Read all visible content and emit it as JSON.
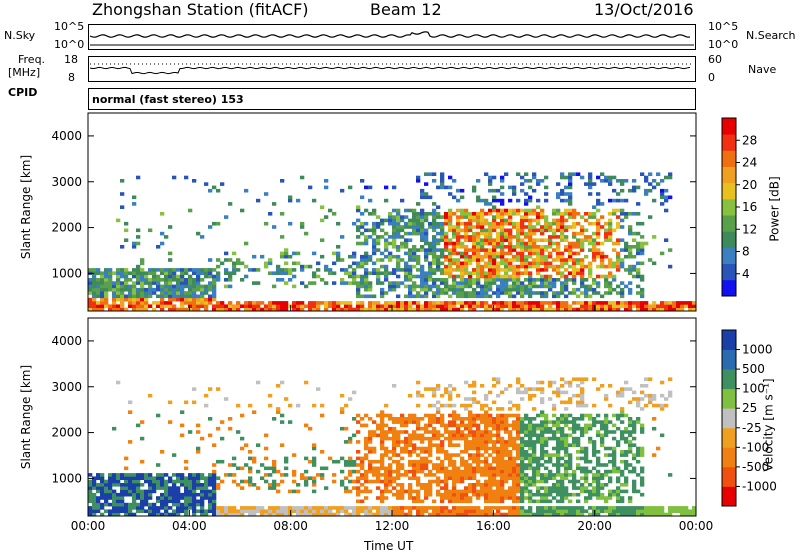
{
  "header": {
    "station": "Zhongshan Station (fitACF)",
    "beam": "Beam 12",
    "date": "13/Oct/2016"
  },
  "top_panels": {
    "nsky_label": "N.Sky",
    "nsky_ticks": [
      "10^5",
      "10^0"
    ],
    "nsearch_label": "N.Search",
    "nsearch_ticks": [
      "10^5",
      "10^0"
    ],
    "freq_label_1": "Freq.",
    "freq_label_2": "[MHz]",
    "freq_ticks": [
      "18",
      "8"
    ],
    "nave_label": "Nave",
    "nave_ticks": [
      "60",
      "0"
    ],
    "cpid_label": "CPID",
    "cpid_value": "normal (fast stereo) 153"
  },
  "colors": {
    "power_scale": [
      "#1010f0",
      "#2a55b8",
      "#3a7fc0",
      "#3f8a5a",
      "#58a04a",
      "#88c040",
      "#e8c020",
      "#f0a020",
      "#f07010",
      "#f03010",
      "#e80000"
    ],
    "velocity_scale": [
      "#e80000",
      "#f05010",
      "#f08010",
      "#f0a020",
      "#c0c0c0",
      "#80c040",
      "#3f9060",
      "#2a6ab0",
      "#1a3fa8"
    ]
  },
  "chart_data": [
    {
      "type": "heatmap",
      "name": "power",
      "ylabel": "Slant Range [km]",
      "xlabel": "",
      "x_ticks": [
        "00:00",
        "04:00",
        "08:00",
        "12:00",
        "16:00",
        "20:00",
        "00:00"
      ],
      "y_ticks": [
        1000,
        2000,
        3000,
        4000
      ],
      "ylim": [
        180,
        4500
      ],
      "xlim_hours": [
        0,
        24
      ],
      "colorbar_label": "Power [dB]",
      "colorbar_ticks": [
        4,
        8,
        12,
        16,
        20,
        24,
        28
      ]
    },
    {
      "type": "heatmap",
      "name": "velocity",
      "ylabel": "Slant Range [km]",
      "xlabel": "Time UT",
      "x_ticks": [
        "00:00",
        "04:00",
        "08:00",
        "12:00",
        "16:00",
        "20:00",
        "00:00"
      ],
      "y_ticks": [
        1000,
        2000,
        3000,
        4000
      ],
      "ylim": [
        180,
        4500
      ],
      "xlim_hours": [
        0,
        24
      ],
      "colorbar_label": "Velocity [m s⁻¹]",
      "colorbar_ticks": [
        -1000,
        -500,
        -100,
        -25,
        25,
        100,
        500,
        1000
      ]
    }
  ]
}
